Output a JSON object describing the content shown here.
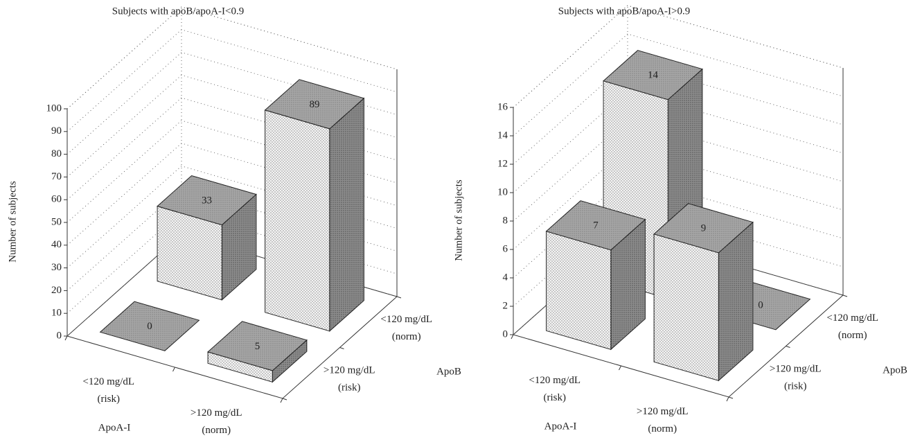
{
  "chart_data": [
    {
      "type": "bar",
      "title": "Subjects with apoB/apoA-I<0.9",
      "y_label": "Number of subjects",
      "x_label": "ApoA-I",
      "z_label": "ApoB",
      "x_categories": [
        [
          "<120 mg/dL",
          "(risk)"
        ],
        [
          ">120 mg/dL",
          "(norm)"
        ]
      ],
      "z_categories": [
        [
          "<120 mg/dL",
          "(norm)"
        ],
        [
          ">120 mg/dL",
          "(risk)"
        ]
      ],
      "values": [
        [
          33,
          89
        ],
        [
          0,
          5
        ]
      ],
      "ylim": [
        0,
        100
      ],
      "yticks": [
        0,
        10,
        20,
        30,
        40,
        50,
        60,
        70,
        80,
        90,
        100
      ],
      "grid": true,
      "colors": {
        "front": "#f4f4f4",
        "side": "#8c8c8c",
        "top": "#a6a6a6"
      }
    },
    {
      "type": "bar",
      "title": "Subjects with apoB/apoA-I>0.9",
      "y_label": "Number of subjects",
      "x_label": "ApoA-I",
      "z_label": "ApoB",
      "x_categories": [
        [
          "<120 mg/dL",
          "(risk)"
        ],
        [
          ">120 mg/dL",
          "(norm)"
        ]
      ],
      "z_categories": [
        [
          "<120 mg/dL",
          "(norm)"
        ],
        [
          ">120 mg/dL",
          "(risk)"
        ]
      ],
      "values": [
        [
          14,
          0
        ],
        [
          7,
          9
        ]
      ],
      "ylim": [
        0,
        16
      ],
      "yticks": [
        0,
        2,
        4,
        6,
        8,
        10,
        12,
        14,
        16
      ],
      "grid": true,
      "colors": {
        "front": "#f4f4f4",
        "side": "#8c8c8c",
        "top": "#a6a6a6"
      }
    }
  ]
}
